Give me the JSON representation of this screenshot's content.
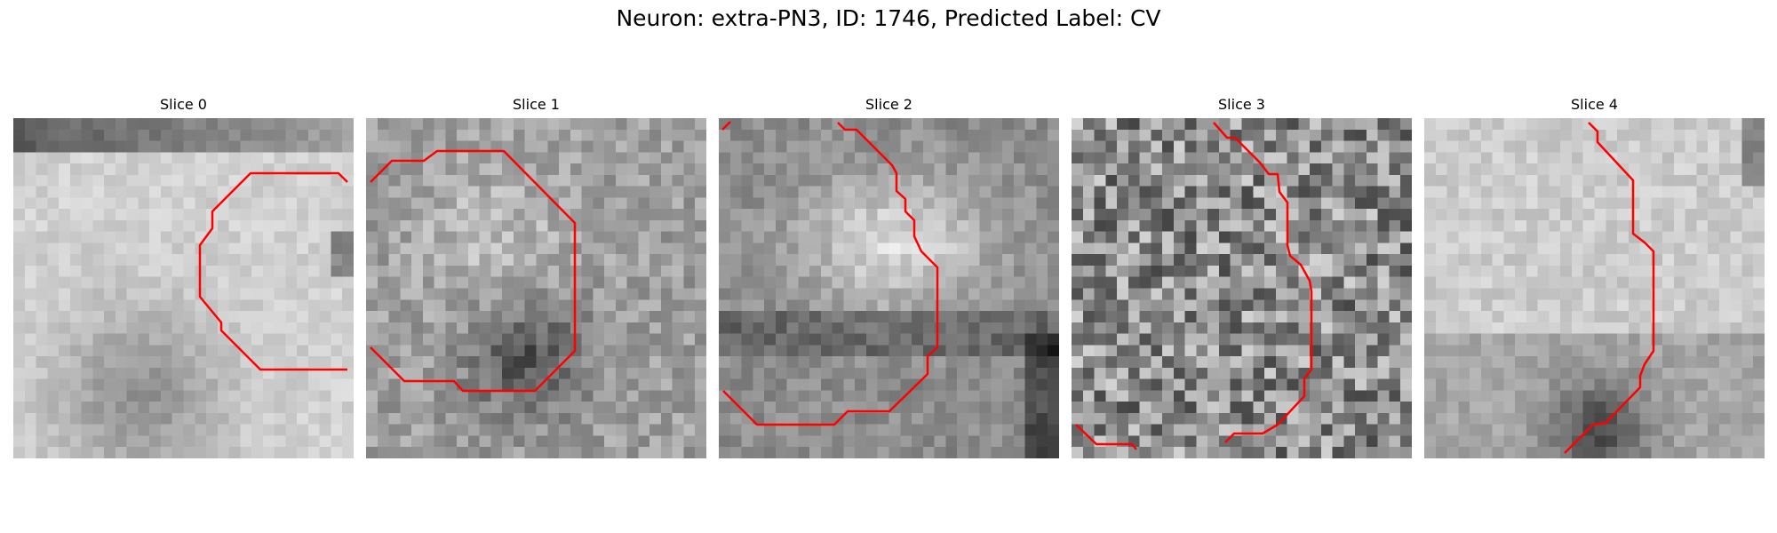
{
  "figure": {
    "title": "Neuron: extra-PN3, ID: 1746, Predicted Label: CV",
    "contour_color": "#ff0000",
    "panels": [
      {
        "title": "Slice 0"
      },
      {
        "title": "Slice 1"
      },
      {
        "title": "Slice 2"
      },
      {
        "title": "Slice 3"
      },
      {
        "title": "Slice 4"
      }
    ]
  }
}
